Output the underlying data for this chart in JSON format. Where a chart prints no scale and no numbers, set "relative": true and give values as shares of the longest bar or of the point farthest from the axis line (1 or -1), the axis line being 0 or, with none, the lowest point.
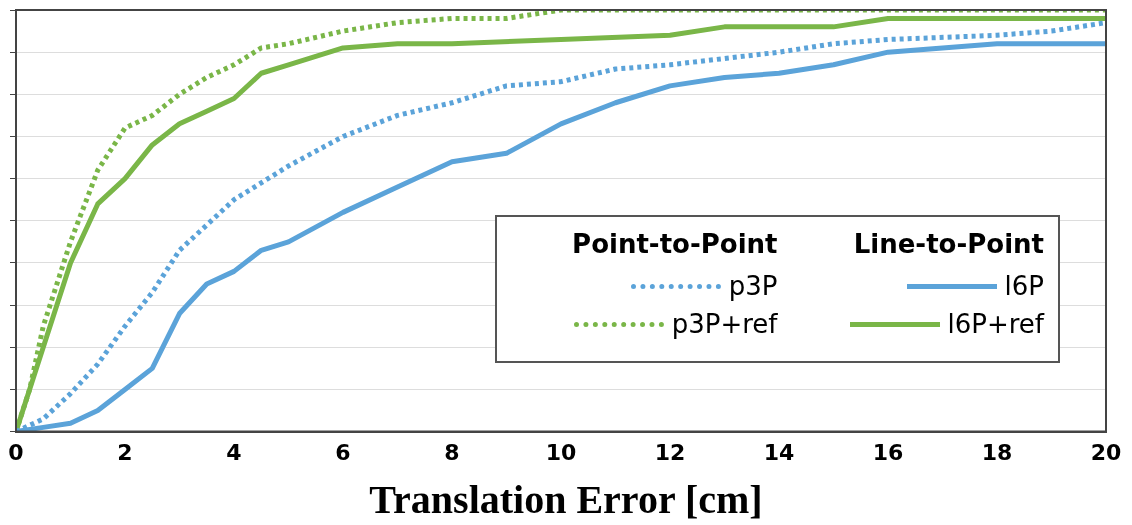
{
  "chart_data": {
    "type": "line",
    "relative": true,
    "xlabel": "Translation Error [cm]",
    "xlim": [
      0,
      20
    ],
    "xticks": [
      0,
      2,
      4,
      6,
      8,
      10,
      12,
      14,
      16,
      18,
      20
    ],
    "grid": "y",
    "legend": "bottom right",
    "marker": "none",
    "annotations": [
      "Point-to-Point",
      "Line-to-Point"
    ],
    "series": [
      {
        "name": "p3P",
        "color": "#5ba3d9",
        "line_style": "dotted",
        "x": [
          0,
          0.5,
          1,
          1.5,
          2,
          2.5,
          3,
          3.5,
          4,
          5,
          6,
          7,
          8,
          9,
          10,
          11,
          12,
          14,
          15,
          16,
          18,
          19,
          20
        ],
        "values": [
          0,
          0.03,
          0.09,
          0.16,
          0.25,
          0.33,
          0.43,
          0.49,
          0.55,
          0.63,
          0.7,
          0.75,
          0.78,
          0.82,
          0.83,
          0.86,
          0.87,
          0.9,
          0.92,
          0.93,
          0.94,
          0.95,
          0.97
        ]
      },
      {
        "name": "p3P+ref",
        "color": "#7ab648",
        "line_style": "dotted",
        "x": [
          0,
          0.25,
          0.5,
          1,
          1.5,
          2,
          2.5,
          3,
          3.5,
          4,
          4.5,
          5,
          6,
          7,
          8,
          9,
          10,
          20
        ],
        "values": [
          0,
          0.1,
          0.25,
          0.45,
          0.62,
          0.72,
          0.75,
          0.8,
          0.84,
          0.87,
          0.91,
          0.92,
          0.95,
          0.97,
          0.98,
          0.98,
          1,
          1
        ]
      },
      {
        "name": "l6P",
        "color": "#5ba3d9",
        "line_style": "solid",
        "x": [
          0,
          0.5,
          1,
          1.5,
          2,
          2.5,
          3,
          3.5,
          4,
          4.5,
          5,
          6,
          7,
          8,
          9,
          10,
          11,
          12,
          13,
          14,
          15,
          16,
          18,
          20
        ],
        "values": [
          0,
          0.01,
          0.02,
          0.05,
          0.1,
          0.15,
          0.28,
          0.35,
          0.38,
          0.43,
          0.45,
          0.52,
          0.58,
          0.64,
          0.66,
          0.73,
          0.78,
          0.82,
          0.84,
          0.85,
          0.87,
          0.9,
          0.92,
          0.92
        ]
      },
      {
        "name": "l6P+ref",
        "color": "#7ab648",
        "line_style": "solid",
        "x": [
          0,
          0.5,
          1,
          1.5,
          2,
          2.5,
          3,
          3.5,
          4,
          4.5,
          5,
          6,
          7,
          8,
          10,
          12,
          13,
          15,
          16,
          20
        ],
        "values": [
          0,
          0.2,
          0.4,
          0.54,
          0.6,
          0.68,
          0.73,
          0.76,
          0.79,
          0.85,
          0.87,
          0.91,
          0.92,
          0.92,
          0.93,
          0.94,
          0.96,
          0.96,
          0.98,
          0.98
        ]
      }
    ]
  }
}
